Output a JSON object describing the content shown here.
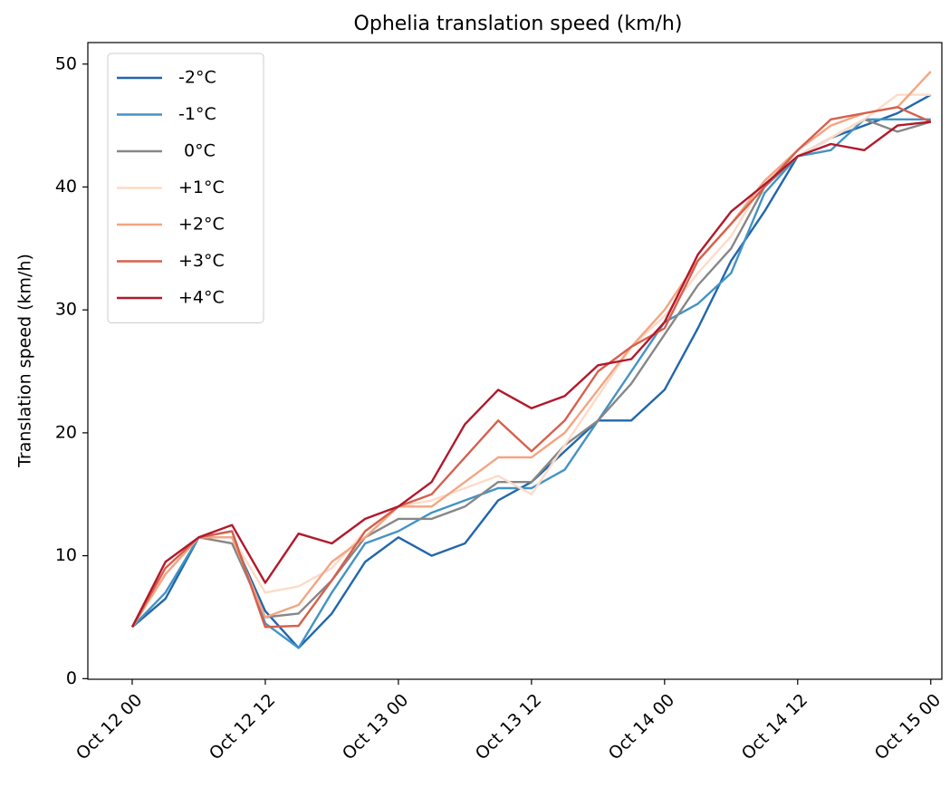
{
  "chart_data": {
    "type": "line",
    "title": "Ophelia translation speed (km/h)",
    "y_label": "Translation speed (km/h)",
    "x": [
      "Oct 12 00",
      "Oct 12 03",
      "Oct 12 06",
      "Oct 12 09",
      "Oct 12 12",
      "Oct 12 15",
      "Oct 12 18",
      "Oct 12 21",
      "Oct 13 00",
      "Oct 13 03",
      "Oct 13 06",
      "Oct 13 09",
      "Oct 13 12",
      "Oct 13 15",
      "Oct 13 18",
      "Oct 13 21",
      "Oct 14 00",
      "Oct 14 03",
      "Oct 14 06",
      "Oct 14 09",
      "Oct 14 12",
      "Oct 14 15",
      "Oct 14 18",
      "Oct 14 21",
      "Oct 15 00"
    ],
    "xlim": [
      "Oct 11 20",
      "Oct 15 01"
    ],
    "xticks": [
      "Oct 12 00",
      "Oct 12 12",
      "Oct 13 00",
      "Oct 13 12",
      "Oct 14 00",
      "Oct 14 12",
      "Oct 15 00"
    ],
    "ylim": [
      -0.05,
      51.75
    ],
    "yticks": [
      0,
      10,
      20,
      30,
      40,
      50
    ],
    "grid": false,
    "legend": "upper left",
    "series": [
      {
        "name": "-2°C",
        "color": "#2166ac",
        "values": [
          4.2,
          6.5,
          11.5,
          11.5,
          5.5,
          2.5,
          5.3,
          9.5,
          11.5,
          10,
          11,
          14.5,
          16,
          18.5,
          21,
          21,
          23.5,
          28.5,
          34,
          38,
          42.5,
          44,
          45,
          46,
          47.5
        ]
      },
      {
        "name": "-1°C",
        "color": "#4393c3",
        "values": [
          4.2,
          7,
          11.5,
          12,
          4.5,
          2.5,
          7,
          11,
          12,
          13.5,
          14.5,
          15.5,
          15.5,
          17,
          21,
          25,
          29,
          30.5,
          33,
          39.5,
          42.5,
          43,
          45.5,
          45.5,
          45.5
        ]
      },
      {
        "name": " 0°C",
        "color": "#878787",
        "values": [
          4.2,
          8.5,
          11.5,
          11,
          5,
          5.3,
          8,
          11.5,
          13,
          13,
          14,
          16,
          16,
          19,
          21,
          24,
          28,
          32,
          35,
          40,
          42.5,
          44,
          45.5,
          44.5,
          45.3
        ]
      },
      {
        "name": "+1°C",
        "color": "#fddbc7",
        "values": [
          4.2,
          8.5,
          11.5,
          11.5,
          7,
          7.5,
          9,
          12,
          14,
          14.5,
          15.5,
          16.5,
          15,
          19,
          23,
          27,
          29.5,
          33,
          36,
          40.5,
          42.5,
          44,
          45.5,
          47.5,
          47.5
        ]
      },
      {
        "name": "+2°C",
        "color": "#f4a582",
        "values": [
          4.2,
          8.5,
          11.5,
          11.5,
          5,
          6,
          9.5,
          11.5,
          14,
          14,
          16,
          18,
          18,
          20,
          23.5,
          27,
          30,
          34,
          37,
          40.5,
          43,
          45,
          46,
          46.5,
          49.4
        ]
      },
      {
        "name": "+3°C",
        "color": "#d6604d",
        "values": [
          4.2,
          9,
          11.5,
          12,
          4.2,
          4.3,
          8,
          12,
          14,
          15,
          18,
          21,
          18.5,
          21,
          25,
          27,
          28.5,
          34,
          37,
          40,
          43,
          45.5,
          46,
          46.5,
          45.3
        ]
      },
      {
        "name": "+4°C",
        "color": "#b2182b",
        "values": [
          4.2,
          9.5,
          11.5,
          12.5,
          7.8,
          11.8,
          11,
          13,
          14,
          16,
          20.7,
          23.5,
          22,
          23,
          25.5,
          26,
          29,
          34.5,
          38,
          40.2,
          42.5,
          43.5,
          43,
          45,
          45.3
        ]
      }
    ]
  }
}
